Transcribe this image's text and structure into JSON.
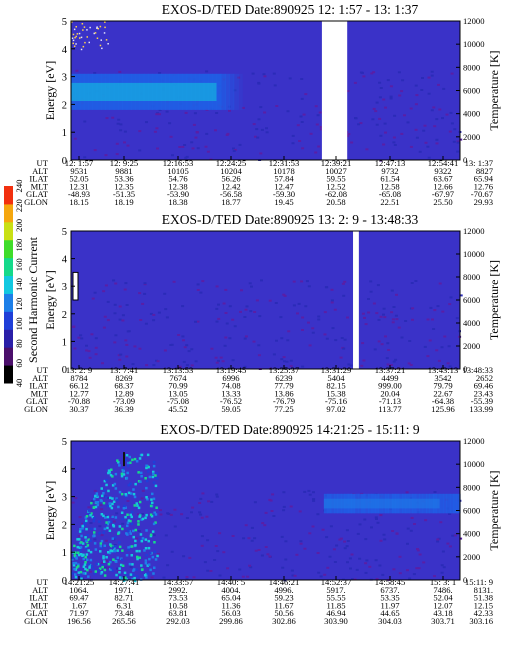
{
  "colorbar": {
    "label": "Second Harmonic Current",
    "ticks": [
      "40",
      "60",
      "80",
      "100",
      "120",
      "140",
      "160",
      "180",
      "200",
      "220",
      "240"
    ],
    "colors": [
      "#000000",
      "#4b0f6b",
      "#2a1fa8",
      "#1f3fd8",
      "#1d7fe8",
      "#12c8e0",
      "#15d98a",
      "#3fdc2a",
      "#c9e015",
      "#f5a70f",
      "#f2300f"
    ]
  },
  "panels": [
    {
      "title": "EXOS-D/TED   Date:890925  12: 1:57 - 13: 1:37",
      "ylabel": "Energy [eV]",
      "y2label": "Temperature [K]",
      "yticks": [
        "0",
        "1",
        "2",
        "3",
        "4",
        "5"
      ],
      "y2ticks": [
        "0",
        "2000",
        "4000",
        "6000",
        "8000",
        "10000",
        "12000"
      ],
      "row_labels": [
        "UT",
        "ALT",
        "ILAT",
        "MLT",
        "GLAT",
        "GLON"
      ],
      "columns": [
        [
          "12: 1:57",
          "9531",
          "52.05",
          "12.31",
          "-48.93",
          "18.15"
        ],
        [
          "12: 9:25",
          "9881",
          "53.36",
          "12.35",
          "-51.35",
          "18.19"
        ],
        [
          "12:16:53",
          "10105",
          "54.76",
          "12.38",
          "-53.90",
          "18.38"
        ],
        [
          "12:24:25",
          "10204",
          "56.26",
          "12.42",
          "-56.58",
          "18.77"
        ],
        [
          "12:31:53",
          "10178",
          "57.84",
          "12.47",
          "-59.30",
          "19.45"
        ],
        [
          "12:39:21",
          "10027",
          "59.55",
          "12.52",
          "-62.08",
          "20.58"
        ],
        [
          "12:47:13",
          "9732",
          "61.54",
          "12.58",
          "-65.08",
          "22.51"
        ],
        [
          "12:54:41",
          "9322",
          "63.67",
          "12.66",
          "-67.97",
          "25.50"
        ],
        [
          "13: 1:37",
          "8827",
          "65.94",
          "12.76",
          "-70.67",
          "29.93"
        ]
      ]
    },
    {
      "title": "EXOS-D/TED   Date:890925  13: 2: 9 - 13:48:33",
      "ylabel": "Energy [eV]",
      "y2label": "Temperature [K]",
      "yticks": [
        "0",
        "1",
        "2",
        "3",
        "4",
        "5"
      ],
      "y2ticks": [
        "0",
        "2000",
        "4000",
        "6000",
        "8000",
        "10000",
        "12000"
      ],
      "row_labels": [
        "UT",
        "ALT",
        "ILAT",
        "MLT",
        "GLAT",
        "GLON"
      ],
      "columns": [
        [
          "13: 2: 9",
          "8784",
          "66.12",
          "12.77",
          "-70.88",
          "30.37"
        ],
        [
          "13: 7:41",
          "8269",
          "68.37",
          "12.89",
          "-73.09",
          "36.39"
        ],
        [
          "13:13:53",
          "7674",
          "70.99",
          "13.05",
          "-75.08",
          "45.52"
        ],
        [
          "13:19:45",
          "6996",
          "74.08",
          "13.33",
          "-76.52",
          "59.05"
        ],
        [
          "13:25:37",
          "6239",
          "77.79",
          "13.86",
          "-76.79",
          "77.25"
        ],
        [
          "13:31:29",
          "5404",
          "82.15",
          "15.38",
          "-75.16",
          "97.02"
        ],
        [
          "13:37:21",
          "4499",
          "999.00",
          "20.04",
          "-71.13",
          "113.77"
        ],
        [
          "13:43:13",
          "3542",
          "79.79",
          "22.67",
          "-64.38",
          "125.96"
        ],
        [
          "13:48:33",
          "2652",
          "69.46",
          "23.43",
          "-55.39",
          "133.99"
        ]
      ]
    },
    {
      "title": "EXOS-D/TED   Date:890925  14:21:25 - 15:11: 9",
      "ylabel": "Energy [eV]",
      "y2label": "Temperature [K]",
      "yticks": [
        "0",
        "1",
        "2",
        "3",
        "4",
        "5"
      ],
      "y2ticks": [
        "0",
        "2000",
        "4000",
        "6000",
        "8000",
        "10000",
        "12000"
      ],
      "row_labels": [
        "UT",
        "ALT",
        "ILAT",
        "MLT",
        "GLAT",
        "GLON"
      ],
      "columns": [
        [
          "14:21:25",
          "1064.",
          "69.47",
          "1.67",
          "71.97",
          "196.56"
        ],
        [
          "14:27:41",
          "1971.",
          "82.71",
          "6.31",
          "73.48",
          "265.56"
        ],
        [
          "14:33:57",
          "2992.",
          "73.53",
          "10.58",
          "63.81",
          "292.03"
        ],
        [
          "14:40: 5",
          "4004.",
          "65.04",
          "11.36",
          "56.03",
          "299.86"
        ],
        [
          "14:46:21",
          "4996.",
          "59.23",
          "11.67",
          "50.56",
          "302.86"
        ],
        [
          "14:52:37",
          "5917.",
          "55.55",
          "11.85",
          "46.94",
          "303.90"
        ],
        [
          "14:58:45",
          "6737.",
          "53.35",
          "11.97",
          "44.65",
          "304.03"
        ],
        [
          "15: 3: 1",
          "7486.",
          "52.04",
          "12.07",
          "43.18",
          "303.71"
        ],
        [
          "15:11: 9",
          "8131.",
          "51.38",
          "12.15",
          "42.33",
          "303.16"
        ]
      ]
    }
  ],
  "chart_data": [
    {
      "type": "heatmap",
      "title": "EXOS-D/TED   Date:890925  12: 1:57 - 13: 1:37",
      "xlabel": "UT",
      "ylabel": "Energy [eV]",
      "y2label": "Temperature [K]",
      "ylim": [
        0,
        5
      ],
      "y2lim": [
        0,
        12000
      ],
      "x": [
        "12: 1:57",
        "12: 9:25",
        "12:16:53",
        "12:24:25",
        "12:31:53",
        "12:39:21",
        "12:47:13",
        "12:54:41",
        "13: 1:37"
      ],
      "color_scale": [
        40,
        240
      ],
      "features": [
        {
          "kind": "band",
          "x_range": [
            0.0,
            0.44
          ],
          "energy_eV": [
            1.8,
            3.1
          ],
          "level": 130
        },
        {
          "kind": "gap",
          "x_range": [
            0.645,
            0.71
          ]
        },
        {
          "kind": "speckle",
          "x_range": [
            0.0,
            0.1
          ],
          "energy_eV": [
            4.0,
            5.0
          ],
          "level": 180
        }
      ]
    },
    {
      "type": "heatmap",
      "title": "EXOS-D/TED   Date:890925  13: 2: 9 - 13:48:33",
      "xlabel": "UT",
      "ylabel": "Energy [eV]",
      "y2label": "Temperature [K]",
      "ylim": [
        0,
        5
      ],
      "y2lim": [
        0,
        12000
      ],
      "x": [
        "13: 2: 9",
        "13: 7:41",
        "13:13:53",
        "13:19:45",
        "13:25:37",
        "13:31:29",
        "13:37:21",
        "13:43:13",
        "13:48:33"
      ],
      "color_scale": [
        40,
        240
      ],
      "features": [
        {
          "kind": "gap",
          "x_range": [
            0.725,
            0.74
          ]
        }
      ]
    },
    {
      "type": "heatmap",
      "title": "EXOS-D/TED   Date:890925  14:21:25 - 15:11: 9",
      "xlabel": "UT",
      "ylabel": "Energy [eV]",
      "y2label": "Temperature [K]",
      "ylim": [
        0,
        5
      ],
      "y2lim": [
        0,
        12000
      ],
      "x": [
        "14:21:25",
        "14:27:41",
        "14:33:57",
        "14:40: 5",
        "14:46:21",
        "14:52:37",
        "14:58:45",
        "15: 3: 1",
        "15:11: 9"
      ],
      "color_scale": [
        40,
        240
      ],
      "features": [
        {
          "kind": "burst",
          "x_range": [
            0.0,
            0.22
          ],
          "energy_eV": [
            0.0,
            4.6
          ],
          "level": 150
        },
        {
          "kind": "band",
          "x_range": [
            0.65,
            1.0
          ],
          "energy_eV": [
            2.4,
            3.1
          ],
          "level": 110
        }
      ]
    }
  ]
}
